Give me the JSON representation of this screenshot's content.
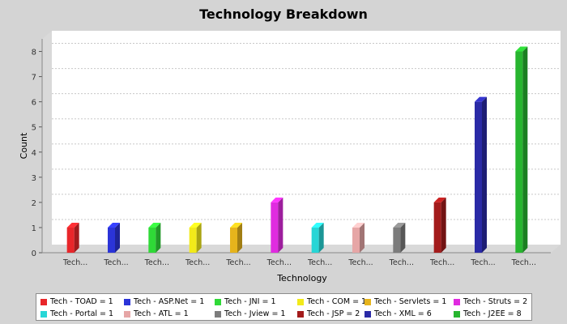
{
  "chart_data": {
    "type": "bar",
    "title": "Technology Breakdown",
    "xlabel": "Technology",
    "ylabel": "Count",
    "ylim": [
      0,
      8.5
    ],
    "yticks": [
      0,
      1,
      2,
      3,
      4,
      5,
      6,
      7,
      8
    ],
    "grid": true,
    "legend_position": "bottom",
    "categories": [
      "Tech...",
      "Tech...",
      "Tech...",
      "Tech...",
      "Tech...",
      "Tech...",
      "Tech...",
      "Tech...",
      "Tech...",
      "Tech...",
      "Tech...",
      "Tech..."
    ],
    "values": [
      1,
      1,
      1,
      1,
      1,
      2,
      1,
      1,
      1,
      2,
      6,
      8
    ],
    "bar_colors": [
      "#e8262a",
      "#2b34d8",
      "#2fd937",
      "#f2ea1a",
      "#e6b41c",
      "#e02be0",
      "#27d6d6",
      "#e6a6a6",
      "#7c7c7c",
      "#a31b1b",
      "#2a2aa6",
      "#27b52f"
    ],
    "legend": [
      "Tech - TOAD = 1",
      "Tech - ASP.Net = 1",
      "Tech - JNI = 1",
      "Tech - COM = 1",
      "Tech - Servlets = 1",
      "Tech - Struts = 2",
      "Tech - Portal = 1",
      "Tech - ATL = 1",
      "Tech - Jview = 1",
      "Tech - JSP = 2",
      "Tech - XML = 6",
      "Tech - J2EE = 8"
    ],
    "colors": {
      "background": "#d4d4d4",
      "plot_background": "#ffffff",
      "wall": "#d9d9d9",
      "gridline": "#c8c8c8"
    }
  }
}
